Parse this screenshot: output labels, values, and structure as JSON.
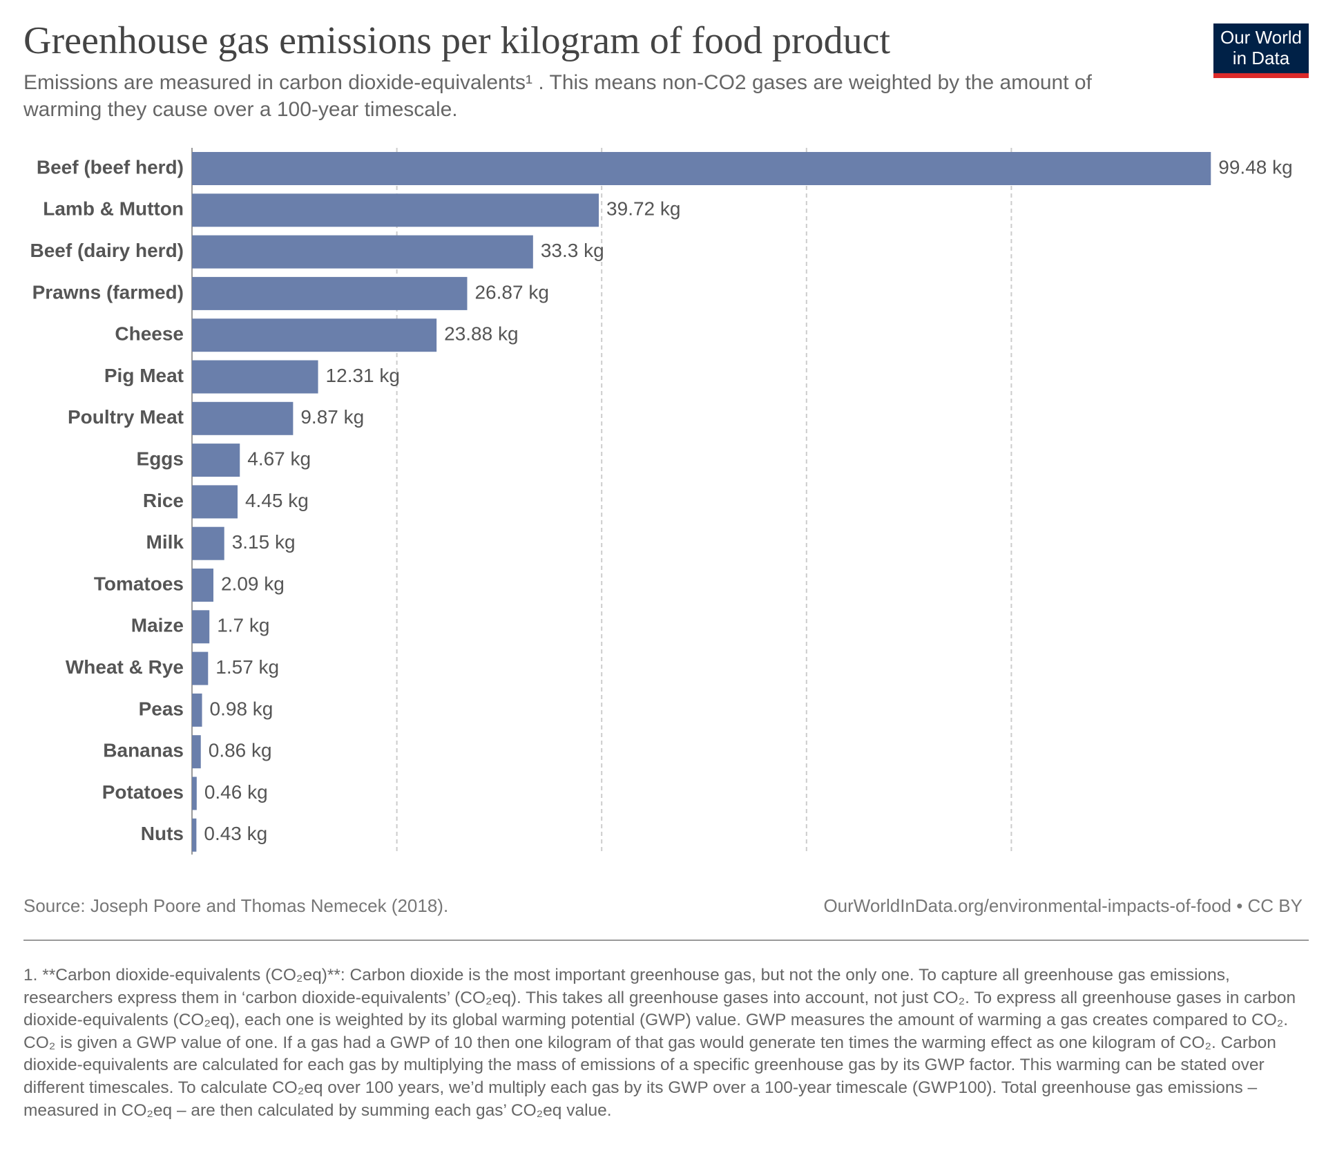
{
  "logo": [
    "Our World",
    "in Data"
  ],
  "chart_data": {
    "type": "bar",
    "orientation": "horizontal",
    "title": "Greenhouse gas emissions per kilogram of food product",
    "subtitle": [
      "Emissions are measured in carbon dioxide-equivalents¹ . This means non-CO2 gases are weighted by the amount of",
      "warming they cause over a 100-year timescale."
    ],
    "categories": [
      "Beef (beef herd)",
      "Lamb & Mutton",
      "Beef (dairy herd)",
      "Prawns (farmed)",
      "Cheese",
      "Pig Meat",
      "Poultry Meat",
      "Eggs",
      "Rice",
      "Milk",
      "Tomatoes",
      "Maize",
      "Wheat & Rye",
      "Peas",
      "Bananas",
      "Potatoes",
      "Nuts"
    ],
    "values": [
      99.48,
      39.72,
      33.3,
      26.87,
      23.88,
      12.31,
      9.87,
      4.67,
      4.45,
      3.15,
      2.09,
      1.7,
      1.57,
      0.98,
      0.86,
      0.46,
      0.43
    ],
    "value_labels": [
      "99.48 kg",
      "39.72 kg",
      "33.3 kg",
      "26.87 kg",
      "23.88 kg",
      "12.31 kg",
      "9.87 kg",
      "4.67 kg",
      "4.45 kg",
      "3.15 kg",
      "2.09 kg",
      "1.7 kg",
      "1.57 kg",
      "0.98 kg",
      "0.86 kg",
      "0.46 kg",
      "0.43 kg"
    ],
    "color": "#6a7fab",
    "xlim": [
      0,
      100
    ],
    "xticks": [
      0,
      20,
      40,
      60,
      80
    ],
    "grid": true,
    "source": "Source: Joseph Poore and Thomas Nemecek (2018).",
    "url": "OurWorldInData.org/environmental-impacts-of-food • CC BY",
    "footnote": "1. **Carbon dioxide-equivalents (CO₂eq)**: Carbon dioxide is the most important greenhouse gas, but not the only one. To capture all greenhouse gas emissions, researchers express them in ‘carbon dioxide-equivalents’ (CO₂eq). This takes all greenhouse gases into account, not just CO₂. To express all greenhouse gases in carbon dioxide-equivalents (CO₂eq), each one is weighted by its global warming potential (GWP) value. GWP measures the amount of warming a gas creates compared to CO₂. CO₂ is given a GWP value of one. If a gas had a GWP of 10 then one kilogram of that gas would generate ten times the warming effect as one kilogram of CO₂. Carbon dioxide-equivalents are calculated for each gas by multiplying the mass of emissions of a specific greenhouse gas by its GWP factor. This warming can be stated over different timescales. To calculate CO₂eq over 100 years, we’d multiply each gas by its GWP over a 100-year timescale (GWP100). Total greenhouse gas emissions – measured in CO₂eq – are then calculated by summing each gas’ CO₂eq value."
  }
}
